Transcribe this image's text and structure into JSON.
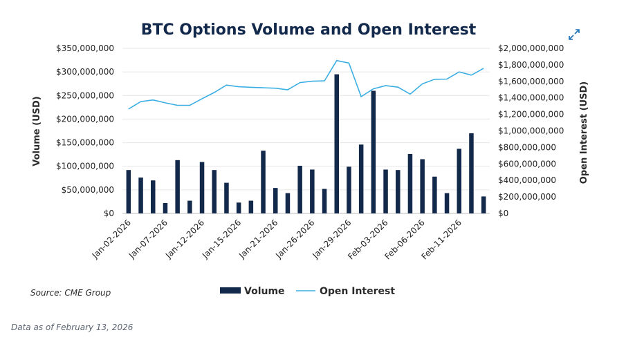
{
  "chart_data": {
    "type": "bar+line",
    "title": "BTC Options Volume and Open Interest",
    "ylabel_left": "Volume (USD)",
    "ylabel_right": "Open Interest (USD)",
    "ylim_left": [
      0,
      350000000
    ],
    "ylim_right": [
      0,
      2000000000
    ],
    "yticks_left": [
      "$0",
      "$50,000,000",
      "$100,000,000",
      "$150,000,000",
      "$200,000,000",
      "$250,000,000",
      "$300,000,000",
      "$350,000,000"
    ],
    "yticks_right": [
      "$0",
      "$200,000,000",
      "$400,000,000",
      "$600,000,000",
      "$800,000,000",
      "$1,000,000,000",
      "$1,200,000,000",
      "$1,400,000,000",
      "$1,600,000,000",
      "$1,800,000,000",
      "$2,000,000,000"
    ],
    "xtick_labels": [
      "Jan-02-2026",
      "Jan-07-2026",
      "Jan-12-2026",
      "Jan-15-2026",
      "Jan-21-2026",
      "Jan-26-2026",
      "Jan-29-2026",
      "Feb-03-2026",
      "Feb-06-2026",
      "Feb-11-2026"
    ],
    "xtick_index": [
      0,
      3,
      6,
      9,
      12,
      15,
      18,
      21,
      24,
      27
    ],
    "series": [
      {
        "name": "Volume",
        "type": "bar",
        "color": "#13294b",
        "values": [
          92000000,
          76000000,
          70000000,
          22000000,
          113000000,
          27000000,
          109000000,
          92000000,
          65000000,
          23000000,
          27000000,
          133000000,
          54000000,
          43000000,
          101000000,
          93000000,
          52000000,
          295000000,
          99000000,
          146000000,
          260000000,
          93000000,
          92000000,
          126000000,
          115000000,
          78000000,
          43000000,
          137000000,
          170000000,
          36000000
        ]
      },
      {
        "name": "Open Interest",
        "type": "line",
        "color": "#3aaee3",
        "values": [
          1265000000,
          1355000000,
          1375000000,
          1340000000,
          1310000000,
          1310000000,
          1390000000,
          1465000000,
          1555000000,
          1535000000,
          1528000000,
          1522000000,
          1517000000,
          1498000000,
          1585000000,
          1602000000,
          1607000000,
          1852000000,
          1822000000,
          1415000000,
          1510000000,
          1548000000,
          1530000000,
          1445000000,
          1570000000,
          1625000000,
          1628000000,
          1715000000,
          1675000000,
          1758000000
        ]
      }
    ],
    "legend": [
      {
        "label": "Volume",
        "color": "#13294b"
      },
      {
        "label": "Open Interest",
        "color": "#3aaee3"
      }
    ],
    "legend_position": "bottom-center",
    "grid": true
  },
  "source": "Source: CME Group",
  "footnote": "Data as of February 13, 2026",
  "expand_icon": "expand-icon"
}
